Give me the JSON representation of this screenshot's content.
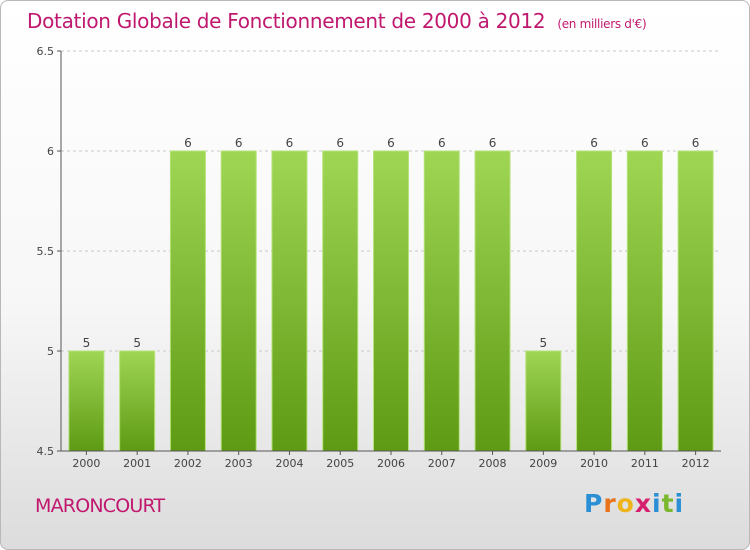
{
  "header": {
    "title": "Dotation Globale de Fonctionnement de 2000 à 2012",
    "subtitle": "(en milliers d'€)"
  },
  "commune": "MARONCOURT",
  "brand": {
    "letters": [
      "P",
      "r",
      "o",
      "x",
      "i",
      "t",
      "i"
    ],
    "colors": [
      "#2b8fd6",
      "#e8731a",
      "#f0b41b",
      "#d6206e",
      "#2b8fd6",
      "#7cb82f",
      "#2b8fd6"
    ]
  },
  "colors": {
    "bar_top": "#9fd654",
    "bar_bottom": "#5e9a14",
    "title": "#c0186f"
  },
  "chart_data": {
    "type": "bar",
    "title": "Dotation Globale de Fonctionnement de 2000 à 2012",
    "subtitle": "(en milliers d'€)",
    "categories": [
      "2000",
      "2001",
      "2002",
      "2003",
      "2004",
      "2005",
      "2006",
      "2007",
      "2008",
      "2009",
      "2010",
      "2011",
      "2012"
    ],
    "values": [
      5,
      5,
      6,
      6,
      6,
      6,
      6,
      6,
      6,
      5,
      6,
      6,
      6
    ],
    "data_labels": [
      "5",
      "5",
      "6",
      "6",
      "6",
      "6",
      "6",
      "6",
      "6",
      "5",
      "6",
      "6",
      "6"
    ],
    "ylim": [
      4.5,
      6.5
    ],
    "yticks": [
      4.5,
      5,
      5.5,
      6,
      6.5
    ],
    "ytick_labels": [
      "4.5",
      "5",
      "5.5",
      "6",
      "6.5"
    ],
    "xlabel": "",
    "ylabel": "",
    "grid": true,
    "legend": "none"
  }
}
